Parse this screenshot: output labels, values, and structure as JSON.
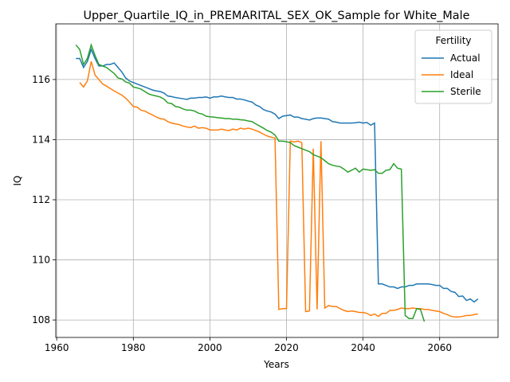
{
  "chart_data": {
    "type": "line",
    "title": "Upper_Quartile_IQ_in_PREMARITAL_SEX_OK_Sample for White_Male",
    "x_label": "Years",
    "y_label": "IQ",
    "x": [
      1965,
      1966,
      1967,
      1968,
      1969,
      1970,
      1971,
      1972,
      1973,
      1974,
      1975,
      1976,
      1977,
      1978,
      1979,
      1980,
      1981,
      1982,
      1983,
      1984,
      1985,
      1986,
      1987,
      1988,
      1989,
      1990,
      1991,
      1992,
      1993,
      1994,
      1995,
      1996,
      1997,
      1998,
      1999,
      2000,
      2001,
      2002,
      2003,
      2004,
      2005,
      2006,
      2007,
      2008,
      2009,
      2010,
      2011,
      2012,
      2013,
      2014,
      2015,
      2016,
      2017,
      2018,
      2019,
      2020,
      2021,
      2022,
      2023,
      2024,
      2025,
      2026,
      2027,
      2028,
      2029,
      2030,
      2031,
      2032,
      2033,
      2034,
      2035,
      2036,
      2037,
      2038,
      2039,
      2040,
      2041,
      2042,
      2043,
      2044,
      2045,
      2046,
      2047,
      2048,
      2049,
      2050,
      2051,
      2052,
      2053,
      2054,
      2055,
      2056,
      2057,
      2058,
      2059,
      2060,
      2061,
      2062,
      2063,
      2064,
      2065,
      2066,
      2067,
      2068,
      2069,
      2070
    ],
    "series": [
      {
        "name": "Actual",
        "color": "#1f77b4",
        "values": [
          116.7,
          116.7,
          116.4,
          116.6,
          117.0,
          116.7,
          116.45,
          116.45,
          116.5,
          116.5,
          116.55,
          116.4,
          116.25,
          116.05,
          115.95,
          115.9,
          115.85,
          115.8,
          115.75,
          115.7,
          115.65,
          115.62,
          115.6,
          115.55,
          115.45,
          115.43,
          115.4,
          115.38,
          115.36,
          115.34,
          115.38,
          115.38,
          115.4,
          115.4,
          115.42,
          115.38,
          115.42,
          115.42,
          115.45,
          115.42,
          115.4,
          115.4,
          115.35,
          115.35,
          115.32,
          115.28,
          115.25,
          115.15,
          115.1,
          115.0,
          114.95,
          114.92,
          114.85,
          114.7,
          114.78,
          114.8,
          114.82,
          114.75,
          114.75,
          114.7,
          114.68,
          114.65,
          114.7,
          114.72,
          114.72,
          114.7,
          114.68,
          114.6,
          114.58,
          114.55,
          114.55,
          114.55,
          114.55,
          114.56,
          114.58,
          114.55,
          114.57,
          114.48,
          114.55,
          109.2,
          109.2,
          109.15,
          109.1,
          109.1,
          109.05,
          109.1,
          109.1,
          109.15,
          109.15,
          109.2,
          109.2,
          109.2,
          109.2,
          109.18,
          109.15,
          109.15,
          109.05,
          109.05,
          108.95,
          108.92,
          108.78,
          108.8,
          108.65,
          108.7,
          108.6,
          108.7
        ]
      },
      {
        "name": "Ideal",
        "color": "#ff7f0e",
        "values": [
          null,
          115.9,
          115.75,
          115.95,
          116.6,
          116.15,
          116.0,
          115.85,
          115.78,
          115.7,
          115.62,
          115.55,
          115.48,
          115.38,
          115.25,
          115.1,
          115.08,
          114.98,
          114.95,
          114.88,
          114.82,
          114.75,
          114.7,
          114.68,
          114.6,
          114.55,
          114.52,
          114.5,
          114.45,
          114.42,
          114.4,
          114.45,
          114.38,
          114.4,
          114.38,
          114.32,
          114.32,
          114.32,
          114.35,
          114.32,
          114.3,
          114.35,
          114.32,
          114.38,
          114.35,
          114.38,
          114.35,
          114.3,
          114.25,
          114.18,
          114.12,
          114.08,
          114.05,
          108.35,
          108.38,
          108.38,
          113.95,
          113.92,
          113.95,
          113.9,
          108.28,
          108.3,
          113.7,
          108.35,
          113.95,
          108.4,
          108.48,
          108.45,
          108.45,
          108.38,
          108.32,
          108.28,
          108.3,
          108.28,
          108.25,
          108.25,
          108.22,
          108.15,
          108.2,
          108.12,
          108.22,
          108.22,
          108.32,
          108.32,
          108.35,
          108.4,
          108.38,
          108.38,
          108.4,
          108.38,
          108.38,
          108.35,
          108.35,
          108.32,
          108.3,
          108.28,
          108.22,
          108.18,
          108.12,
          108.1,
          108.1,
          108.12,
          108.15,
          108.15,
          108.18,
          108.2
        ]
      },
      {
        "name": "Sterile",
        "color": "#2ca02c",
        "values": [
          117.15,
          117.0,
          116.5,
          116.7,
          117.15,
          116.8,
          116.5,
          116.45,
          116.4,
          116.3,
          116.2,
          116.05,
          116.02,
          115.92,
          115.88,
          115.75,
          115.72,
          115.68,
          115.6,
          115.52,
          115.48,
          115.45,
          115.42,
          115.35,
          115.22,
          115.2,
          115.1,
          115.08,
          115.02,
          114.98,
          114.98,
          114.95,
          114.88,
          114.85,
          114.78,
          114.76,
          114.75,
          114.73,
          114.72,
          114.7,
          114.7,
          114.68,
          114.68,
          114.66,
          114.65,
          114.62,
          114.6,
          114.52,
          114.45,
          114.38,
          114.3,
          114.25,
          114.15,
          113.95,
          113.95,
          113.93,
          113.9,
          113.8,
          113.75,
          113.7,
          113.65,
          113.6,
          113.5,
          113.45,
          113.4,
          113.3,
          113.2,
          113.15,
          113.12,
          113.1,
          113.02,
          112.92,
          112.98,
          113.05,
          112.92,
          113.02,
          113.0,
          112.98,
          113.0,
          112.88,
          112.88,
          112.98,
          113.0,
          113.2,
          113.05,
          113.02,
          108.15,
          108.05,
          108.05,
          108.38,
          108.35,
          107.95,
          null,
          null,
          null,
          null,
          null,
          null,
          null,
          null,
          null,
          null,
          null,
          null,
          null,
          null
        ]
      }
    ],
    "xlim": [
      1959.75,
      2075.25
    ],
    "xticks": [
      1960,
      1980,
      2000,
      2020,
      2040,
      2060
    ],
    "ylim": [
      107.42,
      117.85
    ],
    "yticks": [
      108,
      110,
      112,
      114,
      116
    ],
    "grid": true,
    "legend_title": "Fertility",
    "legend_position": "upper right"
  }
}
